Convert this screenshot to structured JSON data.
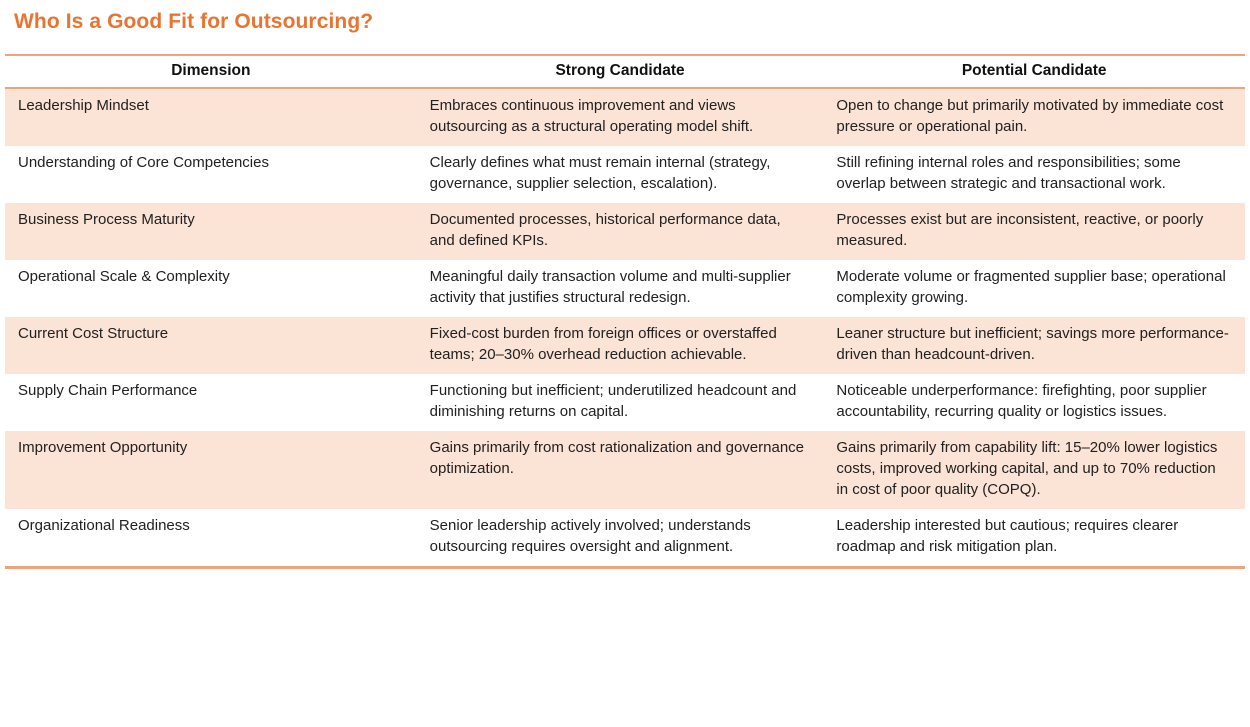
{
  "page": {
    "title": "Who Is a Good Fit for Outsourcing?"
  },
  "colors": {
    "accent_title": "#E8742F",
    "table_border": "#EDA47C",
    "row_highlight": "#FBE3D6",
    "body_text": "#212121"
  },
  "table": {
    "columns": {
      "dimension": "Dimension",
      "strong": "Strong Candidate",
      "potential": "Potential Candidate"
    },
    "rows": [
      {
        "dimension": "Leadership Mindset",
        "strong": "Embraces continuous improvement and views outsourcing as a structural operating model shift.",
        "potential": "Open to change but primarily motivated by immediate cost pressure or operational pain."
      },
      {
        "dimension": "Understanding of Core Competencies",
        "strong": "Clearly defines what must remain internal (strategy, governance, supplier selection, escalation).",
        "potential": "Still refining internal roles and responsibilities; some overlap between strategic and transactional work."
      },
      {
        "dimension": "Business Process Maturity",
        "strong": "Documented processes, historical performance data, and defined KPIs.",
        "potential": "Processes exist but are inconsistent, reactive, or poorly measured."
      },
      {
        "dimension": "Operational Scale & Complexity",
        "strong": "Meaningful daily transaction volume and multi-supplier activity that justifies structural redesign.",
        "potential": "Moderate volume or fragmented supplier base; operational complexity growing."
      },
      {
        "dimension": "Current Cost Structure",
        "strong": "Fixed-cost burden from foreign offices or overstaffed teams; 20–30% overhead reduction achievable.",
        "potential": "Leaner structure but inefficient; savings more performance-driven than headcount-driven."
      },
      {
        "dimension": "Supply Chain Performance",
        "strong": "Functioning but inefficient; underutilized headcount and diminishing returns on capital.",
        "potential": "Noticeable underperformance: firefighting, poor supplier accountability, recurring quality or logistics issues."
      },
      {
        "dimension": "Improvement Opportunity",
        "strong": "Gains primarily from cost rationalization and governance optimization.",
        "potential": "Gains primarily from capability lift: 15–20% lower logistics costs, improved working capital, and up to 70% reduction in cost of poor quality (COPQ)."
      },
      {
        "dimension": "Organizational Readiness",
        "strong": "Senior leadership actively involved; understands outsourcing requires oversight and alignment.",
        "potential": "Leadership interested but cautious; requires clearer roadmap and risk mitigation plan."
      }
    ]
  }
}
